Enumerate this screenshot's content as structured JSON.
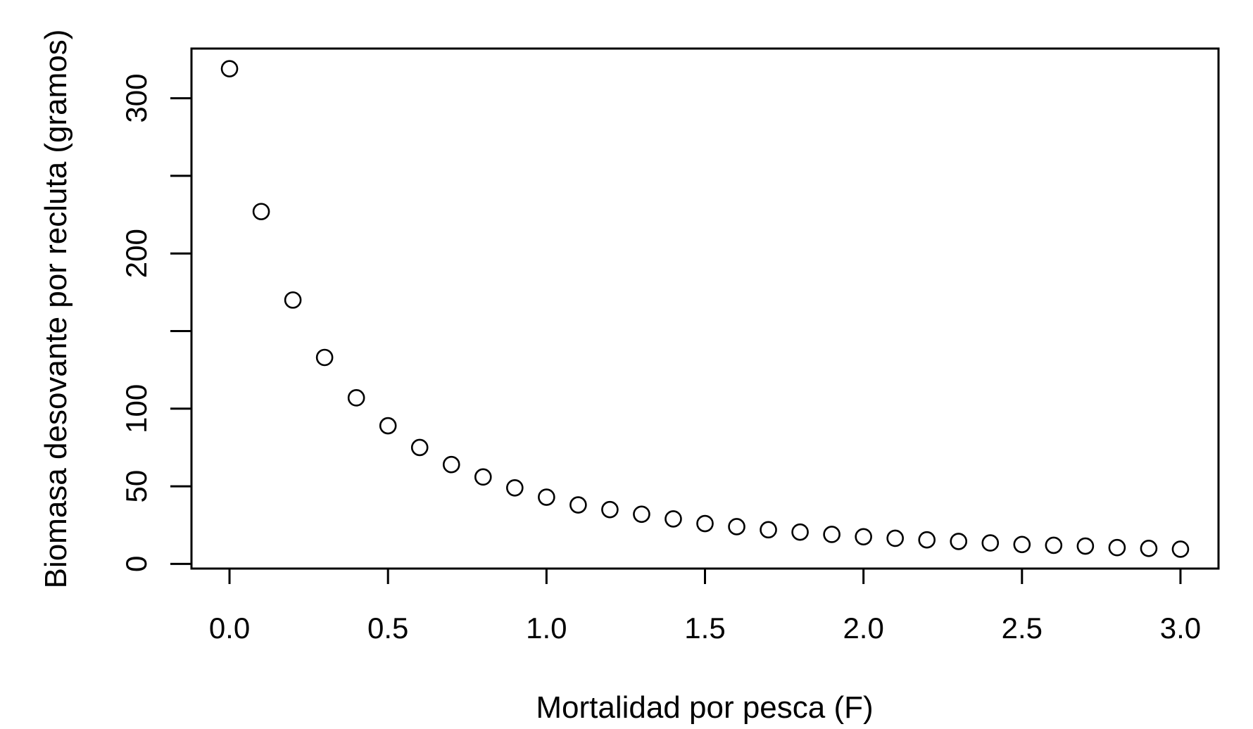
{
  "chart_data": {
    "type": "scatter",
    "title": "",
    "xlabel": "Mortalidad por pesca (F)",
    "ylabel": "Biomasa desovante por recluta (gramos)",
    "x": [
      0.0,
      0.1,
      0.2,
      0.3,
      0.4,
      0.5,
      0.6,
      0.7,
      0.8,
      0.9,
      1.0,
      1.1,
      1.2,
      1.3,
      1.4,
      1.5,
      1.6,
      1.7,
      1.8,
      1.9,
      2.0,
      2.1,
      2.2,
      2.3,
      2.4,
      2.5,
      2.6,
      2.7,
      2.8,
      2.9,
      3.0
    ],
    "y": [
      319,
      227,
      170,
      133,
      107,
      89,
      75,
      64,
      56,
      49,
      43,
      38,
      35,
      32,
      29,
      26,
      24,
      22,
      20.5,
      19,
      17.5,
      16.5,
      15.5,
      14.5,
      13.5,
      12.5,
      12,
      11.5,
      10.5,
      10,
      9.5
    ],
    "xlim": [
      -0.12,
      3.12
    ],
    "ylim": [
      -3,
      332
    ],
    "xticks": [
      0.0,
      0.5,
      1.0,
      1.5,
      2.0,
      2.5,
      3.0
    ],
    "xtick_labels": [
      "0.0",
      "0.5",
      "1.0",
      "1.5",
      "2.0",
      "2.5",
      "3.0"
    ],
    "yticks": [
      0,
      50,
      100,
      150,
      200,
      250,
      300
    ],
    "ytick_labels": [
      "0",
      "50",
      "100",
      "",
      "200",
      "",
      "300"
    ],
    "marker": "open-circle",
    "grid": false,
    "legend": "none"
  }
}
